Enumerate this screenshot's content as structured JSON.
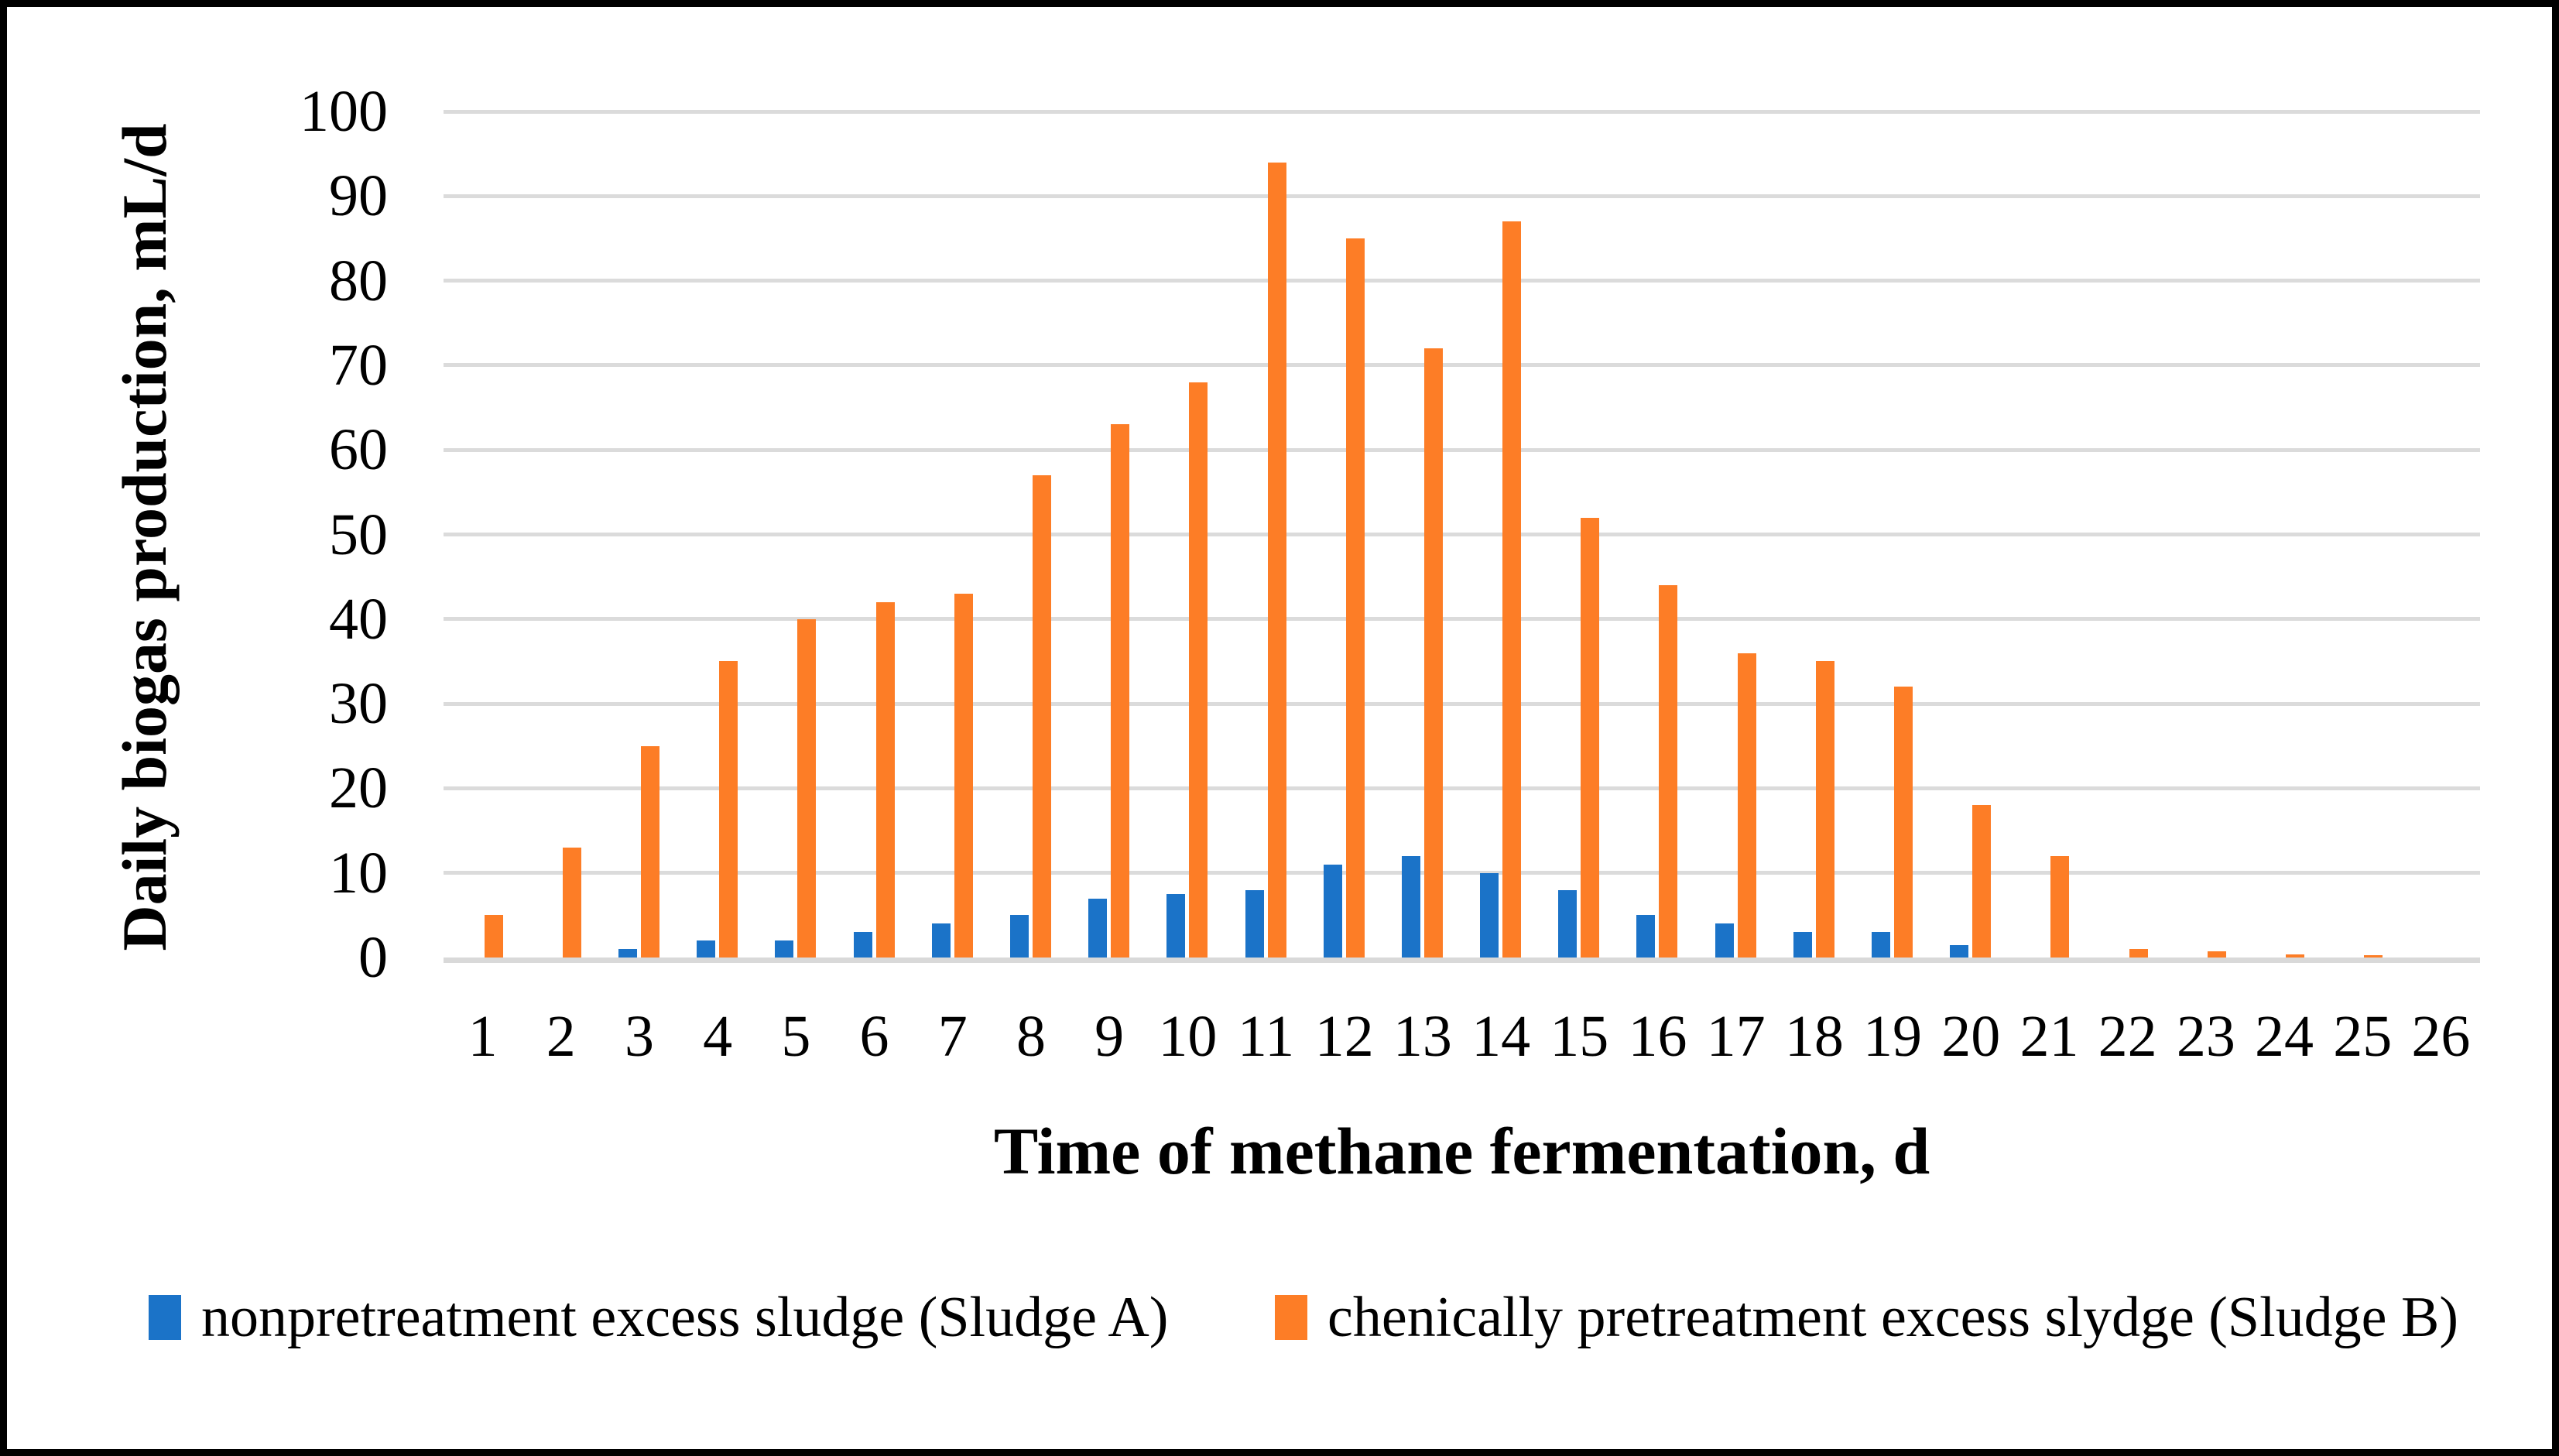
{
  "figure": {
    "background": "#FFFFFF",
    "border_color": "#000000",
    "gridline_color": "#DBDBDB",
    "text_color": "#000000"
  },
  "y_axis": {
    "title": "Daily biogas production, mL/d",
    "tick_labels": [
      "0",
      "10",
      "20",
      "30",
      "40",
      "50",
      "60",
      "70",
      "80",
      "90",
      "100"
    ],
    "min": 0,
    "max": 100,
    "step": 10
  },
  "x_axis": {
    "title": "Time of methane fermentation, d",
    "tick_labels": [
      "1",
      "2",
      "3",
      "4",
      "5",
      "6",
      "7",
      "8",
      "9",
      "10",
      "11",
      "12",
      "13",
      "14",
      "15",
      "16",
      "17",
      "18",
      "19",
      "20",
      "21",
      "22",
      "23",
      "24",
      "25",
      "26"
    ]
  },
  "legend": {
    "entries": [
      {
        "label": "nonpretreatment excess sludge (Sludge A)",
        "color": "#1B73C8"
      },
      {
        "label": "chenically pretreatment excess slydge (Sludge B)",
        "color": "#FD7D26"
      }
    ]
  },
  "chart_data": {
    "type": "bar",
    "title": "",
    "xlabel": "Time of methane fermentation, d",
    "ylabel": "Daily biogas production, mL/d",
    "ylim": [
      0,
      100
    ],
    "grid": true,
    "legend_position": "bottom",
    "categories": [
      "1",
      "2",
      "3",
      "4",
      "5",
      "6",
      "7",
      "8",
      "9",
      "10",
      "11",
      "12",
      "13",
      "14",
      "15",
      "16",
      "17",
      "18",
      "19",
      "20",
      "21",
      "22",
      "23",
      "24",
      "25",
      "26"
    ],
    "series": [
      {
        "name": "nonpretreatment excess sludge (Sludge A)",
        "color": "#1B73C8",
        "values": [
          0,
          0,
          1,
          2,
          2,
          3,
          4,
          5,
          7,
          7.5,
          8,
          11,
          12,
          10,
          8,
          5,
          4,
          3,
          3,
          1.5,
          0,
          0,
          0,
          0,
          0,
          0
        ]
      },
      {
        "name": "chenically pretreatment excess slydge (Sludge B)",
        "color": "#FD7D26",
        "values": [
          5,
          13,
          25,
          35,
          40,
          42,
          43,
          57,
          63,
          68,
          94,
          85,
          72,
          87,
          52,
          44,
          36,
          35,
          32,
          18,
          12,
          1,
          0.7,
          0.4,
          0.3,
          0
        ]
      }
    ]
  }
}
